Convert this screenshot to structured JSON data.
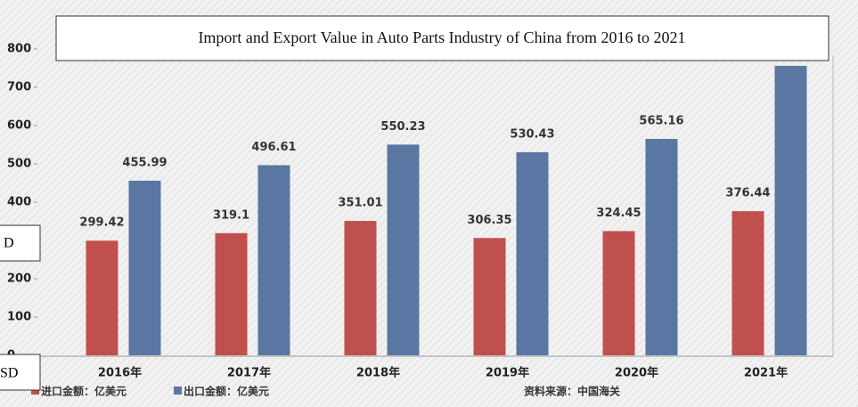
{
  "chart_data": {
    "type": "bar",
    "title": "Import and Export Value in Auto Parts Industry of China from 2016 to 2021",
    "categories": [
      "2016年",
      "2017年",
      "2018年",
      "2019年",
      "2020年",
      "2021年"
    ],
    "series": [
      {
        "name": "进口金额：亿美元",
        "color": "#c0504d",
        "values": [
          299.42,
          319.1,
          351.01,
          306.35,
          324.45,
          376.44
        ]
      },
      {
        "name": "出口金额：亿美元",
        "color": "#5a76a2",
        "values": [
          455.99,
          496.61,
          550.23,
          530.43,
          565.16,
          756
        ]
      }
    ],
    "ylim": [
      0,
      800
    ],
    "yticks": [
      0,
      100,
      200,
      300,
      400,
      500,
      600,
      700,
      800
    ],
    "source": "资料来源：中国海关",
    "annotations": [
      "D",
      "SD"
    ]
  }
}
